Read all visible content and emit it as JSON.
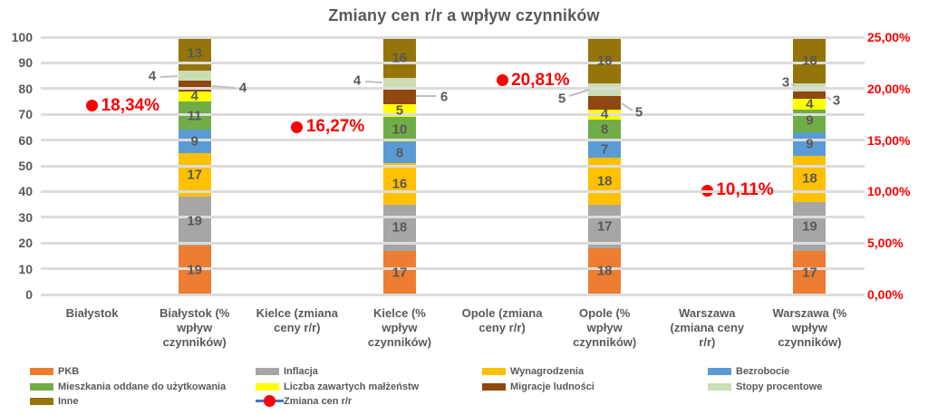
{
  "title": "Zmiany cen r/r a wpływ czynników",
  "chart_data": {
    "type": "bar",
    "stacked": true,
    "title": "Zmiany cen r/r a wpływ czynników",
    "categories": [
      "Białystok",
      "Białystok (% wpływ czynników)",
      "Kielce (zmiana ceny r/r)",
      "Kielce (% wpływ czynników)",
      "Opole (zmiana ceny r/r)",
      "Opole (% wpływ czynników)",
      "Warszawa (zmiana ceny r/r)",
      "Warszawa (% wpływ czynników)"
    ],
    "categories_wrapped": [
      [
        "Białystok"
      ],
      [
        "Białystok (%",
        "wpływ",
        "czynników)"
      ],
      [
        "Kielce (zmiana",
        "ceny r/r)"
      ],
      [
        "Kielce (%",
        "wpływ",
        "czynników)"
      ],
      [
        "Opole (zmiana",
        "ceny r/r)"
      ],
      [
        "Opole (%",
        "wpływ",
        "czynników)"
      ],
      [
        "Warszawa",
        "(zmiana ceny",
        "r/r)"
      ],
      [
        "Warszawa (%",
        "wpływ",
        "czynników)"
      ]
    ],
    "left_axis": {
      "min": 0,
      "max": 100,
      "labels": [
        "0",
        "10",
        "20",
        "30",
        "40",
        "50",
        "60",
        "70",
        "80",
        "90",
        "100"
      ]
    },
    "right_axis": {
      "min": 0,
      "max": 25,
      "labels": [
        "0,00%",
        "5,00%",
        "10,00%",
        "15,00%",
        "20,00%",
        "25,00%"
      ],
      "color": "#FF0000"
    },
    "grid": true,
    "legend_position": "bottom",
    "series": [
      {
        "name": "PKB",
        "color": "#ED7D31",
        "values": [
          null,
          19,
          null,
          17,
          null,
          18,
          null,
          17
        ]
      },
      {
        "name": "Inflacja",
        "color": "#A6A6A6",
        "values": [
          null,
          19,
          null,
          18,
          null,
          17,
          null,
          19
        ]
      },
      {
        "name": "Wynagrodzenia",
        "color": "#FFC000",
        "values": [
          null,
          17,
          null,
          16,
          null,
          18,
          null,
          18
        ]
      },
      {
        "name": "Bezrobocie",
        "color": "#5B9BD5",
        "values": [
          null,
          9,
          null,
          8,
          null,
          7,
          null,
          9
        ]
      },
      {
        "name": "Mieszkania oddane do użytkowania",
        "color": "#70AD47",
        "values": [
          null,
          11,
          null,
          10,
          null,
          8,
          null,
          9
        ]
      },
      {
        "name": "Liczba zawartych małżeństw",
        "color": "#FFFF00",
        "values": [
          null,
          4,
          null,
          5,
          null,
          4,
          null,
          4
        ]
      },
      {
        "name": "Migracje ludności",
        "color": "#8F480F",
        "values": [
          null,
          4,
          null,
          6,
          null,
          5,
          null,
          3
        ],
        "labels_outside": true
      },
      {
        "name": "Stopy procentowe",
        "color": "#CBDDB4",
        "values": [
          null,
          4,
          null,
          4,
          null,
          5,
          null,
          3
        ],
        "labels_outside": true
      },
      {
        "name": "Inne",
        "color": "#957509",
        "values": [
          null,
          13,
          null,
          16,
          null,
          18,
          null,
          18
        ]
      }
    ],
    "marker_series": {
      "name": "Zmiana cen r/r",
      "marker_color": "#FF0000",
      "legend_line_color": "#4472C4",
      "points": [
        {
          "category_index": 0,
          "value": 18.34,
          "label": "18,34%"
        },
        {
          "category_index": 2,
          "value": 16.27,
          "label": "16,27%"
        },
        {
          "category_index": 4,
          "value": 20.81,
          "label": "20,81%"
        },
        {
          "category_index": 6,
          "value": 10.11,
          "label": "10,11%"
        }
      ]
    }
  },
  "legend": {
    "columns": [
      [
        {
          "type": "swatch",
          "label": "PKB",
          "color": "#ED7D31"
        },
        {
          "type": "swatch",
          "label": "Mieszkania oddane do użytkowania",
          "color": "#70AD47"
        },
        {
          "type": "swatch",
          "label": "Inne",
          "color": "#957509"
        }
      ],
      [
        {
          "type": "swatch",
          "label": "Inflacja",
          "color": "#A6A6A6"
        },
        {
          "type": "swatch",
          "label": "Liczba zawartych małżeństw",
          "color": "#FFFF00"
        },
        {
          "type": "line-marker",
          "label": "Zmiana cen r/r",
          "color": "#FF0000",
          "line_color": "#4472C4"
        }
      ],
      [
        {
          "type": "swatch",
          "label": "Wynagrodzenia",
          "color": "#FFC000"
        },
        {
          "type": "swatch",
          "label": "Migracje ludności",
          "color": "#8F480F"
        }
      ],
      [
        {
          "type": "swatch",
          "label": "Bezrobocie",
          "color": "#5B9BD5"
        },
        {
          "type": "swatch",
          "label": "Stopy procentowe",
          "color": "#CBDDB4"
        }
      ]
    ]
  },
  "style_colors": {
    "text": "#595959",
    "gridline": "#DCDCDC",
    "leader_line": "#BFBFBF",
    "background": "#FFFFFF"
  }
}
